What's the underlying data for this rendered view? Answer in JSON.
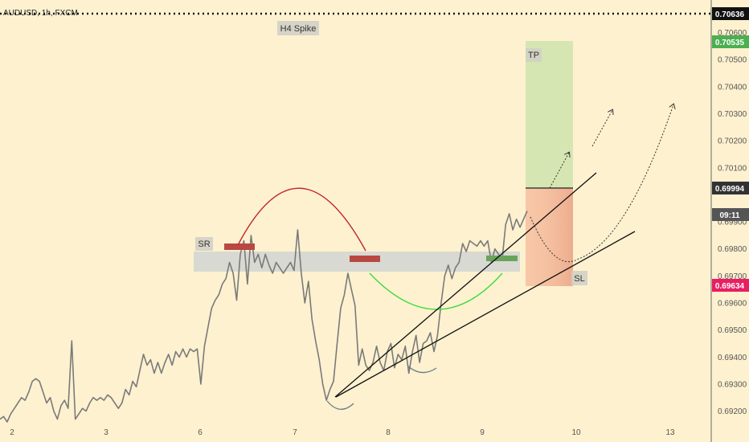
{
  "chart_data": {
    "type": "line",
    "title": "AUDUSD, 1h, FXCM",
    "x_ticks": [
      "2",
      "3",
      "6",
      "7",
      "8",
      "9",
      "10",
      "13"
    ],
    "y_ticks": [
      "0.70600",
      "0.70500",
      "0.70400",
      "0.70300",
      "0.70200",
      "0.70100",
      "0.69900",
      "0.69800",
      "0.69700",
      "0.69600",
      "0.69500",
      "0.69400",
      "0.69300",
      "0.69200"
    ],
    "ylim": [
      0.6916,
      0.7067
    ],
    "series": [
      {
        "values": [
          0.6917,
          0.6918,
          0.6916,
          0.6919,
          0.6921,
          0.6923,
          0.6925,
          0.6924,
          0.6927,
          0.6931,
          0.6932,
          0.6931,
          0.6927,
          0.6923,
          0.6925,
          0.692,
          0.6917,
          0.6922,
          0.6924,
          0.6921,
          0.6946,
          0.6917,
          0.6919,
          0.6921,
          0.692,
          0.6923,
          0.6925,
          0.6924,
          0.6925,
          0.6924,
          0.6926,
          0.6925,
          0.6923,
          0.6921,
          0.6923,
          0.6928,
          0.6926,
          0.6931,
          0.6929,
          0.6935,
          0.6941,
          0.6937,
          0.6939,
          0.6934,
          0.6938,
          0.6934,
          0.6938,
          0.6941,
          0.6937,
          0.6942,
          0.694,
          0.6943,
          0.694,
          0.6943,
          0.6942,
          0.6943,
          0.693,
          0.6944,
          0.6951,
          0.6958,
          0.6961,
          0.6963,
          0.6967,
          0.6969,
          0.6975,
          0.6971,
          0.6961,
          0.6978,
          0.6983,
          0.6967,
          0.6985,
          0.6975,
          0.6978,
          0.6973,
          0.6978,
          0.6974,
          0.6971,
          0.6975,
          0.6973,
          0.6971,
          0.6973,
          0.6975,
          0.6972,
          0.6987,
          0.6971,
          0.696,
          0.6968,
          0.6954,
          0.6946,
          0.6939,
          0.693,
          0.6924,
          0.6928,
          0.6931,
          0.6945,
          0.6958,
          0.6963,
          0.6971,
          0.6965,
          0.6959,
          0.6937,
          0.6943,
          0.6937,
          0.6935,
          0.6938,
          0.6944,
          0.6938,
          0.6935,
          0.6942,
          0.6945,
          0.6936,
          0.6941,
          0.6939,
          0.6944,
          0.6934,
          0.6942,
          0.6948,
          0.6938,
          0.6945,
          0.6946,
          0.6949,
          0.6942,
          0.6948,
          0.696,
          0.697,
          0.6974,
          0.6969,
          0.6973,
          0.6975,
          0.6982,
          0.6979,
          0.6983,
          0.6982,
          0.6981,
          0.6983,
          0.6981,
          0.6983,
          0.6975,
          0.698,
          0.6978,
          0.6976,
          0.6989,
          0.6993,
          0.6987,
          0.6991,
          0.6988,
          0.6991,
          0.6994
        ]
      }
    ],
    "x_range": [
      0,
      153
    ]
  },
  "price_tags": {
    "current_price": "0.70636",
    "tp_price": "0.70535",
    "entry_price": "0.69994",
    "countdown": "09:11",
    "sl_price": "0.69634"
  },
  "annotations": {
    "h4_spike": "H4 Spike",
    "sr": "SR",
    "tp": "TP",
    "sl": "SL"
  },
  "colors": {
    "background": "#fdf1cf",
    "price_line": "#777777",
    "support_zone": "#d4d6d2",
    "tp_zone": "#d2e4ae",
    "sl_zone": "#f4b89a",
    "current_tag": "#111111",
    "tp_tag": "#4caf50",
    "entry_tag": "#333333",
    "sl_tag": "#e91e63",
    "red_marker": "#b94742",
    "green_marker": "#6aa45a",
    "red_arc": "#c0262b",
    "green_arc": "#3ddc3d"
  }
}
